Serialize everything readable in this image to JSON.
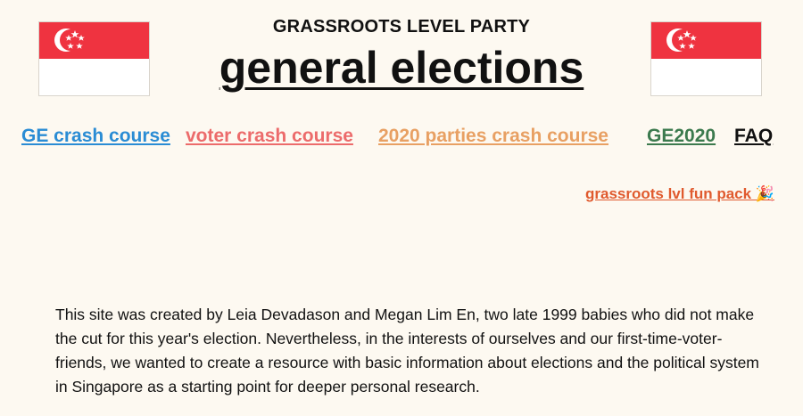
{
  "header": {
    "subtitle": "GRASSROOTS LEVEL PARTY",
    "title": "general elections"
  },
  "flags": {
    "left_icon": "singapore-flag-icon",
    "right_icon": "singapore-flag-icon",
    "red": "#ef3340",
    "white": "#ffffff"
  },
  "nav": {
    "items": [
      {
        "label": "GE crash course",
        "color": "#2a8cd4"
      },
      {
        "label": "voter crash course",
        "color": "#ec6b6b"
      },
      {
        "label": "2020 parties crash course",
        "color": "#e8a063"
      },
      {
        "label": "GE2020",
        "color": "#3c7a4e"
      },
      {
        "label": "FAQ",
        "color": "#111111"
      }
    ]
  },
  "fun_pack": {
    "label": "grassroots lvl fun pack 🎉",
    "color": "#e05a2e"
  },
  "about": {
    "text": "This site was created by Leia Devadason and Megan Lim En, two late 1999 babies who did not make the cut for this year's election. Nevertheless, in the interests of ourselves and our first-time-voter-friends, we wanted to create a resource with basic information about elections and the political system in Singapore as a starting point for deeper personal research."
  }
}
